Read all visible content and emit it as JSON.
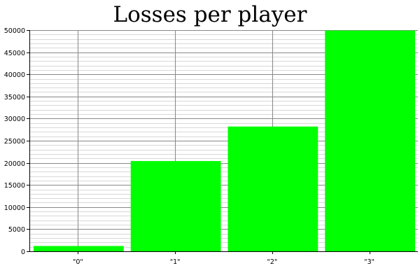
{
  "chart_data": {
    "type": "bar",
    "title": "Losses per player",
    "xlabel": "",
    "ylabel": "",
    "categories": [
      "\"0\"",
      "\"1\"",
      "\"2\"",
      "\"3\""
    ],
    "values": [
      1200,
      20400,
      28200,
      49900
    ],
    "ylim": [
      0,
      50000
    ],
    "yticks": [
      0,
      5000,
      10000,
      15000,
      20000,
      25000,
      30000,
      35000,
      40000,
      45000,
      50000
    ],
    "minor_grid_step": 1000,
    "grid": true,
    "legend": "none",
    "bar_color": "#00ff00",
    "major_grid_color": "#888888",
    "minor_grid_color": "#d8d8d8"
  }
}
